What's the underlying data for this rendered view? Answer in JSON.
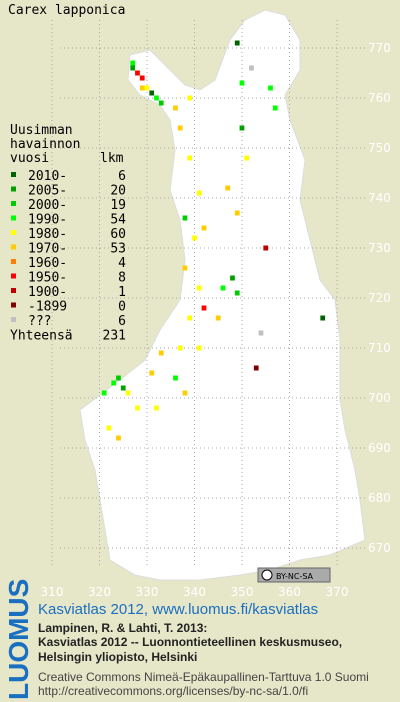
{
  "title": "Carex lapponica",
  "legend": {
    "heading": [
      "Uusimman",
      "havainnon",
      "vuosi"
    ],
    "count_heading": "lkm",
    "rows": [
      {
        "label": "2010-",
        "count": 6,
        "color": "#006400"
      },
      {
        "label": "2005-",
        "count": 20,
        "color": "#00a000"
      },
      {
        "label": "2000-",
        "count": 19,
        "color": "#00cc00"
      },
      {
        "label": "1990-",
        "count": 54,
        "color": "#00ff00"
      },
      {
        "label": "1980-",
        "count": 60,
        "color": "#ffff00"
      },
      {
        "label": "1970-",
        "count": 53,
        "color": "#ffcc00"
      },
      {
        "label": "1960-",
        "count": 4,
        "color": "#ff8000"
      },
      {
        "label": "1950-",
        "count": 8,
        "color": "#ff0000"
      },
      {
        "label": "1900-",
        "count": 1,
        "color": "#c00000"
      },
      {
        "label": "-1899",
        "count": 0,
        "color": "#800000"
      },
      {
        "label": "???",
        "count": 6,
        "color": "#c0c0c0"
      }
    ],
    "total_label": "Yhteensä",
    "total": 231
  },
  "map": {
    "xticks": [
      310,
      320,
      330,
      340,
      350,
      360,
      370
    ],
    "yticks": [
      670,
      680,
      690,
      700,
      710,
      720,
      730,
      740,
      750,
      760,
      770
    ],
    "points": [
      [
        327,
        767,
        3
      ],
      [
        328,
        765,
        7
      ],
      [
        329,
        764,
        7
      ],
      [
        330,
        762,
        4
      ],
      [
        331,
        761,
        0
      ],
      [
        332,
        760,
        3
      ],
      [
        329,
        762,
        5
      ],
      [
        327,
        766,
        1
      ],
      [
        333,
        759,
        2
      ],
      [
        352,
        766,
        10
      ],
      [
        349,
        771,
        0
      ],
      [
        356,
        762,
        3
      ],
      [
        350,
        763,
        3
      ],
      [
        337,
        754,
        5
      ],
      [
        339,
        748,
        4
      ],
      [
        351,
        748,
        4
      ],
      [
        347,
        742,
        5
      ],
      [
        349,
        737,
        5
      ],
      [
        341,
        741,
        4
      ],
      [
        338,
        736,
        2
      ],
      [
        342,
        734,
        5
      ],
      [
        355,
        730,
        8
      ],
      [
        348,
        724,
        1
      ],
      [
        346,
        722,
        3
      ],
      [
        349,
        721,
        2
      ],
      [
        341,
        722,
        4
      ],
      [
        339,
        716,
        4
      ],
      [
        342,
        718,
        7
      ],
      [
        345,
        716,
        5
      ],
      [
        354,
        713,
        10
      ],
      [
        353,
        706,
        9
      ],
      [
        367,
        716,
        0
      ],
      [
        337,
        710,
        4
      ],
      [
        333,
        709,
        5
      ],
      [
        324,
        704,
        2
      ],
      [
        323,
        703,
        3
      ],
      [
        325,
        702,
        1
      ],
      [
        321,
        701,
        3
      ],
      [
        326,
        701,
        4
      ],
      [
        328,
        698,
        4
      ],
      [
        322,
        694,
        4
      ],
      [
        324,
        692,
        5
      ],
      [
        332,
        698,
        4
      ],
      [
        338,
        701,
        5
      ],
      [
        336,
        704,
        3
      ],
      [
        331,
        705,
        5
      ],
      [
        341,
        710,
        4
      ],
      [
        338,
        726,
        5
      ],
      [
        340,
        732,
        4
      ],
      [
        350,
        754,
        1
      ],
      [
        357,
        758,
        3
      ],
      [
        339,
        760,
        4
      ],
      [
        336,
        758,
        5
      ]
    ]
  },
  "footer": {
    "brand": "LUOMUS",
    "license_badge": "BY-NC-SA",
    "link": "Kasviatlas 2012, www.luomus.fi/kasviatlas",
    "citation": [
      "Lampinen, R. & Lahti, T. 2013:",
      "Kasviatlas 2012 -- Luonnontieteellinen keskusmuseo,",
      "Helsingin yliopisto, Helsinki"
    ],
    "license": [
      "Creative Commons Nimeä-Epäkaupallinen-Tarttuva 1.0 Suomi",
      "http://creativecommons.org/licenses/by-nc-sa/1.0/fi"
    ]
  }
}
